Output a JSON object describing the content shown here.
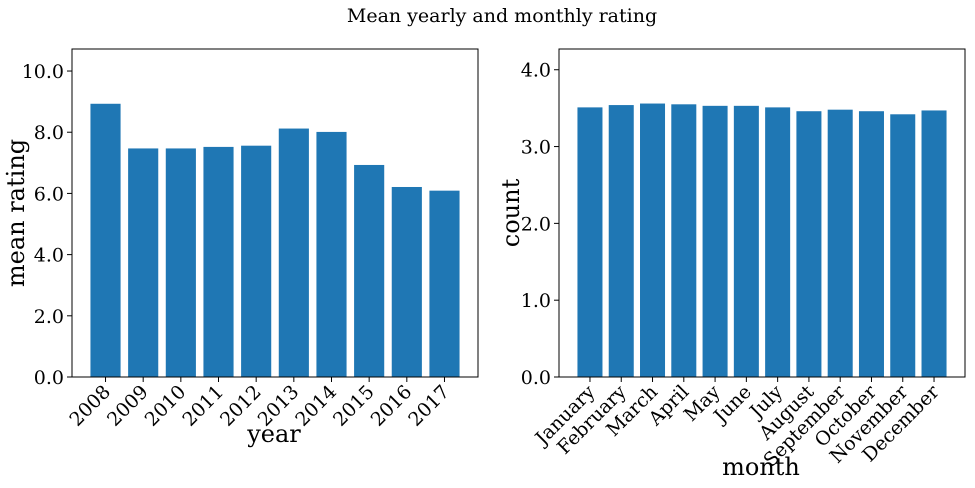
{
  "figure": {
    "suptitle": "Mean yearly and monthly rating",
    "bar_color": "#1f77b4"
  },
  "chart_data": [
    {
      "type": "bar",
      "categories": [
        "2008",
        "2009",
        "2010",
        "2011",
        "2012",
        "2013",
        "2014",
        "2015",
        "2016",
        "2017"
      ],
      "values": [
        8.93,
        7.47,
        7.47,
        7.52,
        7.56,
        8.12,
        8.01,
        6.93,
        6.21,
        6.09
      ],
      "xlabel": "year",
      "ylabel": "mean rating",
      "ylim": [
        0,
        10.72
      ],
      "yticks": [
        "0.0",
        "2.0",
        "4.0",
        "6.0",
        "8.0",
        "10.0"
      ],
      "ytick_values": [
        0,
        2,
        4,
        6,
        8,
        10
      ],
      "xtick_rotation": 45,
      "grid": false,
      "color": "#1f77b4"
    },
    {
      "type": "bar",
      "categories": [
        "January",
        "February",
        "March",
        "April",
        "May",
        "June",
        "July",
        "August",
        "September",
        "October",
        "November",
        "December"
      ],
      "values": [
        3.51,
        3.54,
        3.56,
        3.55,
        3.53,
        3.53,
        3.51,
        3.46,
        3.48,
        3.46,
        3.42,
        3.47
      ],
      "xlabel": "month",
      "ylabel": "count",
      "ylim": [
        0,
        4.27
      ],
      "yticks": [
        "0.0",
        "1.0",
        "2.0",
        "3.0",
        "4.0"
      ],
      "ytick_values": [
        0,
        1,
        2,
        3,
        4
      ],
      "xtick_rotation": 45,
      "grid": false,
      "color": "#1f77b4"
    }
  ]
}
